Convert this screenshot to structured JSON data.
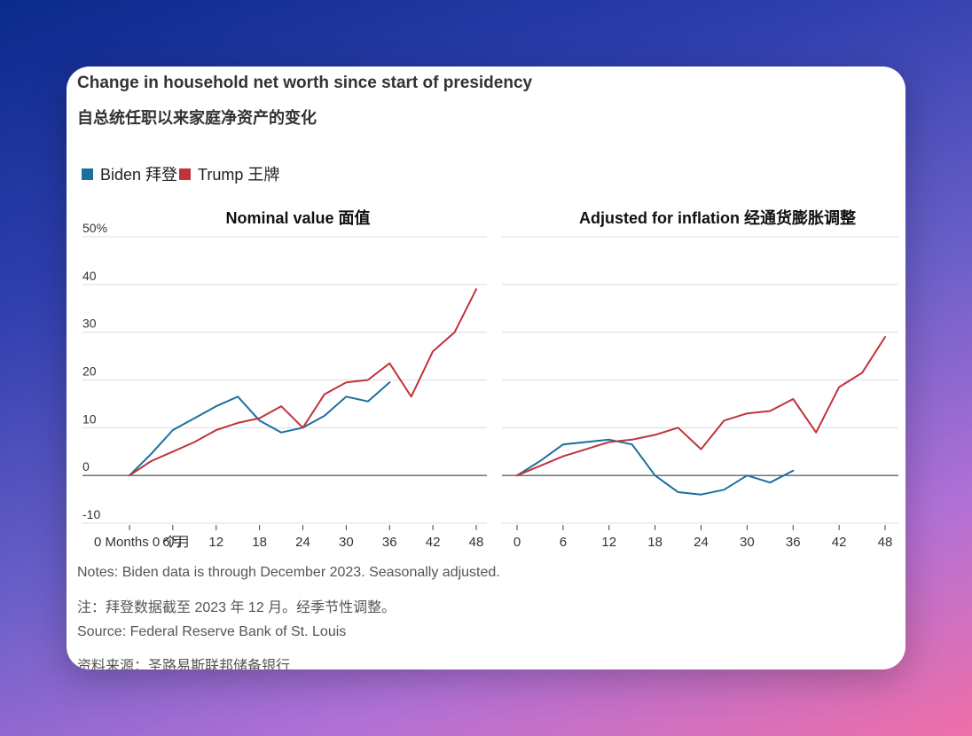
{
  "title": "Change in household net worth since start of presidency",
  "subtitle": "自总统任职以来家庭净资产的变化",
  "legend": [
    {
      "label": "Biden 拜登",
      "color": "#1a6fa0"
    },
    {
      "label": "Trump 王牌",
      "color": "#c0333a"
    }
  ],
  "notes": [
    "Notes: Biden data is through December 2023. Seasonally adjusted.",
    "注：拜登数据截至 2023 年 12 月。经季节性调整。",
    "Source: Federal Reserve Bank of St. Louis",
    "资料来源：圣路易斯联邦储备银行"
  ],
  "chart_data": [
    {
      "type": "line",
      "title": "Nominal value 面值",
      "xlim": [
        0,
        48
      ],
      "ylim": [
        -10,
        50
      ],
      "x_ticks": [
        0,
        6,
        12,
        18,
        24,
        30,
        36,
        42,
        48
      ],
      "x_tick_labels": [
        "0 Months 0 个月",
        "6月",
        "12",
        "18",
        "24",
        "30",
        "36",
        "42",
        "48"
      ],
      "y_ticks": [
        -10,
        0,
        10,
        20,
        30,
        40,
        50
      ],
      "y_tick_labels": [
        "-10",
        "0",
        "10",
        "20",
        "30",
        "40",
        "50%"
      ],
      "series": [
        {
          "name": "Biden 拜登",
          "color": "#1a6fa0",
          "x": [
            0,
            3,
            6,
            9,
            12,
            15,
            18,
            21,
            24,
            27,
            30,
            33,
            36
          ],
          "y": [
            0,
            4.5,
            9.5,
            12,
            14.5,
            16.5,
            11.5,
            9,
            10,
            12.5,
            16.5,
            15.5,
            19.5
          ]
        },
        {
          "name": "Trump 王牌",
          "color": "#c0333a",
          "x": [
            0,
            3,
            6,
            9,
            12,
            15,
            18,
            21,
            24,
            27,
            30,
            33,
            36,
            39,
            42,
            45,
            48
          ],
          "y": [
            0,
            3,
            5,
            7,
            9.5,
            11,
            12,
            14.5,
            10,
            17,
            19.5,
            20,
            23.5,
            16.5,
            26,
            30,
            39
          ]
        }
      ]
    },
    {
      "type": "line",
      "title": "Adjusted for inflation 经通货膨胀调整",
      "xlim": [
        0,
        48
      ],
      "ylim": [
        -10,
        50
      ],
      "x_ticks": [
        0,
        6,
        12,
        18,
        24,
        30,
        36,
        42,
        48
      ],
      "x_tick_labels": [
        "0",
        "6",
        "12",
        "18",
        "24",
        "30",
        "36",
        "42",
        "48"
      ],
      "series": [
        {
          "name": "Biden 拜登",
          "color": "#1a6fa0",
          "x": [
            0,
            3,
            6,
            9,
            12,
            15,
            18,
            21,
            24,
            27,
            30,
            33,
            36
          ],
          "y": [
            0,
            3,
            6.5,
            7,
            7.5,
            6.5,
            0,
            -3.5,
            -4,
            -3,
            0,
            -1.5,
            1
          ]
        },
        {
          "name": "Trump 王牌",
          "color": "#c0333a",
          "x": [
            0,
            3,
            6,
            9,
            12,
            15,
            18,
            21,
            24,
            27,
            30,
            33,
            36,
            39,
            42,
            45,
            48
          ],
          "y": [
            0,
            2,
            4,
            5.5,
            7,
            7.5,
            8.5,
            10,
            5.5,
            11.5,
            13,
            13.5,
            16,
            9,
            18.5,
            21.5,
            29
          ]
        }
      ]
    }
  ]
}
